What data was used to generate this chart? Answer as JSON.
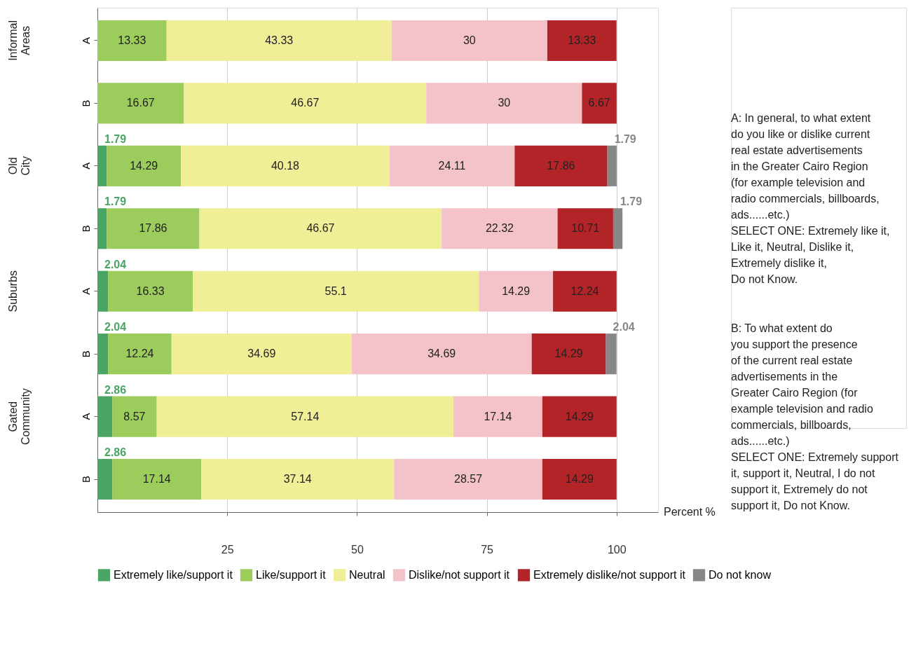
{
  "chart_data": {
    "type": "bar",
    "orientation": "horizontal",
    "stacked": true,
    "data_labels": true,
    "grid": "x",
    "legend": "bottom",
    "xlabel": "Percent %",
    "xlim": [
      0,
      108
    ],
    "xticks": [
      25,
      50,
      75,
      100
    ],
    "categories": [
      "A",
      "B",
      "A",
      "B",
      "A",
      "B",
      "A",
      "B"
    ],
    "series": [
      {
        "name": "Extremely like/support it",
        "color": "#4aa564",
        "values": [
          null,
          null,
          1.79,
          1.79,
          2.04,
          2.04,
          2.86,
          2.86
        ]
      },
      {
        "name": "Like/support it",
        "color": "#9ccc5c",
        "values": [
          13.33,
          16.67,
          14.29,
          17.86,
          16.33,
          12.24,
          8.57,
          17.14
        ]
      },
      {
        "name": "Neutral",
        "color": "#f0ee96",
        "values": [
          43.33,
          46.67,
          40.18,
          46.67,
          55.1,
          34.69,
          57.14,
          37.14
        ]
      },
      {
        "name": "Dislike/not support it",
        "color": "#f4c2c9",
        "values": [
          30,
          30,
          24.11,
          22.32,
          14.29,
          34.69,
          17.14,
          28.57
        ]
      },
      {
        "name": "Extremely dislike/not support it",
        "color": "#b22427",
        "values": [
          13.33,
          6.67,
          17.86,
          10.71,
          12.24,
          14.29,
          14.29,
          14.29
        ]
      },
      {
        "name": "Do not know",
        "color": "#878787",
        "values": [
          null,
          null,
          1.79,
          1.79,
          null,
          2.04,
          null,
          null
        ]
      }
    ],
    "annotations": [
      "Informal Areas",
      "Old City",
      "Suburbs",
      "Gated Community",
      "A: In general, to what extent\ndo you like or dislike current\nreal estate advertisements\nin the Greater Cairo Region\n(for example television and\nradio commercials, billboards,\nads......etc.)\nSELECT ONE: Extremely like it,\nLike it, Neutral, Dislike it,\nExtremely dislike it,\nDo not Know.",
      "B: To what extent do\nyou support the presence\nof the current real estate\nadvertisements in the\nGreater Cairo Region (for\nexample television and radio\ncommercials, billboards,\nads......etc.)\nSELECT ONE: Extremely support\nit, support it, Neutral, I do not\nsupport it, Extremely do not\nsupport it, Do not Know."
    ]
  }
}
